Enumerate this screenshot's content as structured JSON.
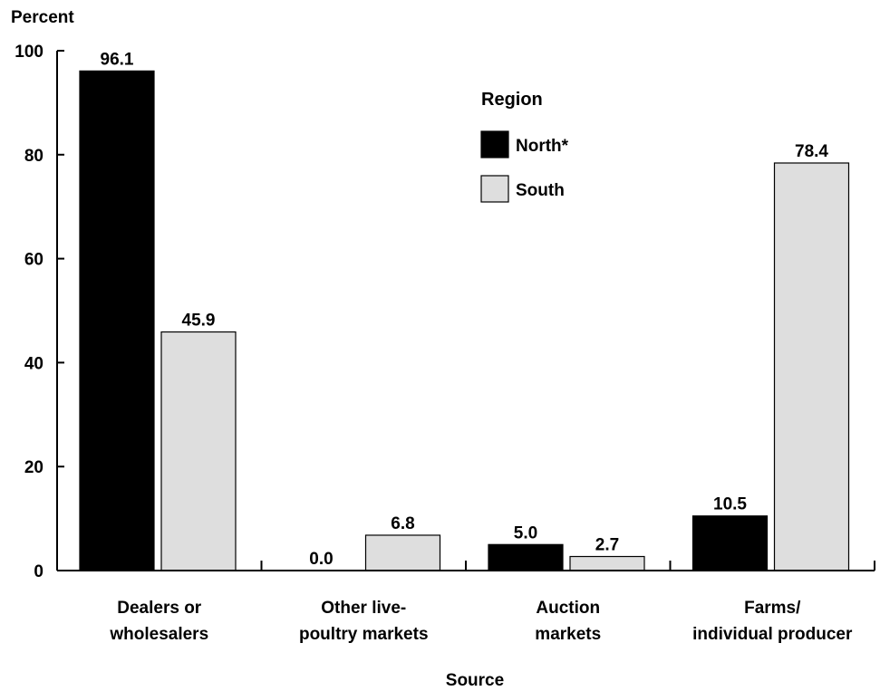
{
  "chart_data": {
    "type": "bar",
    "ylabel": "Percent",
    "xlabel": "Source",
    "ylim": [
      0,
      100
    ],
    "yticks": [
      0,
      20,
      40,
      60,
      80,
      100
    ],
    "categories": [
      [
        "Dealers or",
        "wholesalers"
      ],
      [
        "Other live-",
        "poultry markets"
      ],
      [
        "Auction",
        "markets"
      ],
      [
        "Farms/",
        "individual producer"
      ]
    ],
    "legend_title": "Region",
    "legend_position": "top-right",
    "series": [
      {
        "name": "North*",
        "color": "#000000",
        "values": [
          96.1,
          0.0,
          5.0,
          10.5
        ],
        "labels": [
          "96.1",
          "0.0",
          "5.0",
          "10.5"
        ]
      },
      {
        "name": "South",
        "color": "#dedede",
        "values": [
          45.9,
          6.8,
          2.7,
          78.4
        ],
        "labels": [
          "45.9",
          "6.8",
          "2.7",
          "78.4"
        ]
      }
    ]
  }
}
